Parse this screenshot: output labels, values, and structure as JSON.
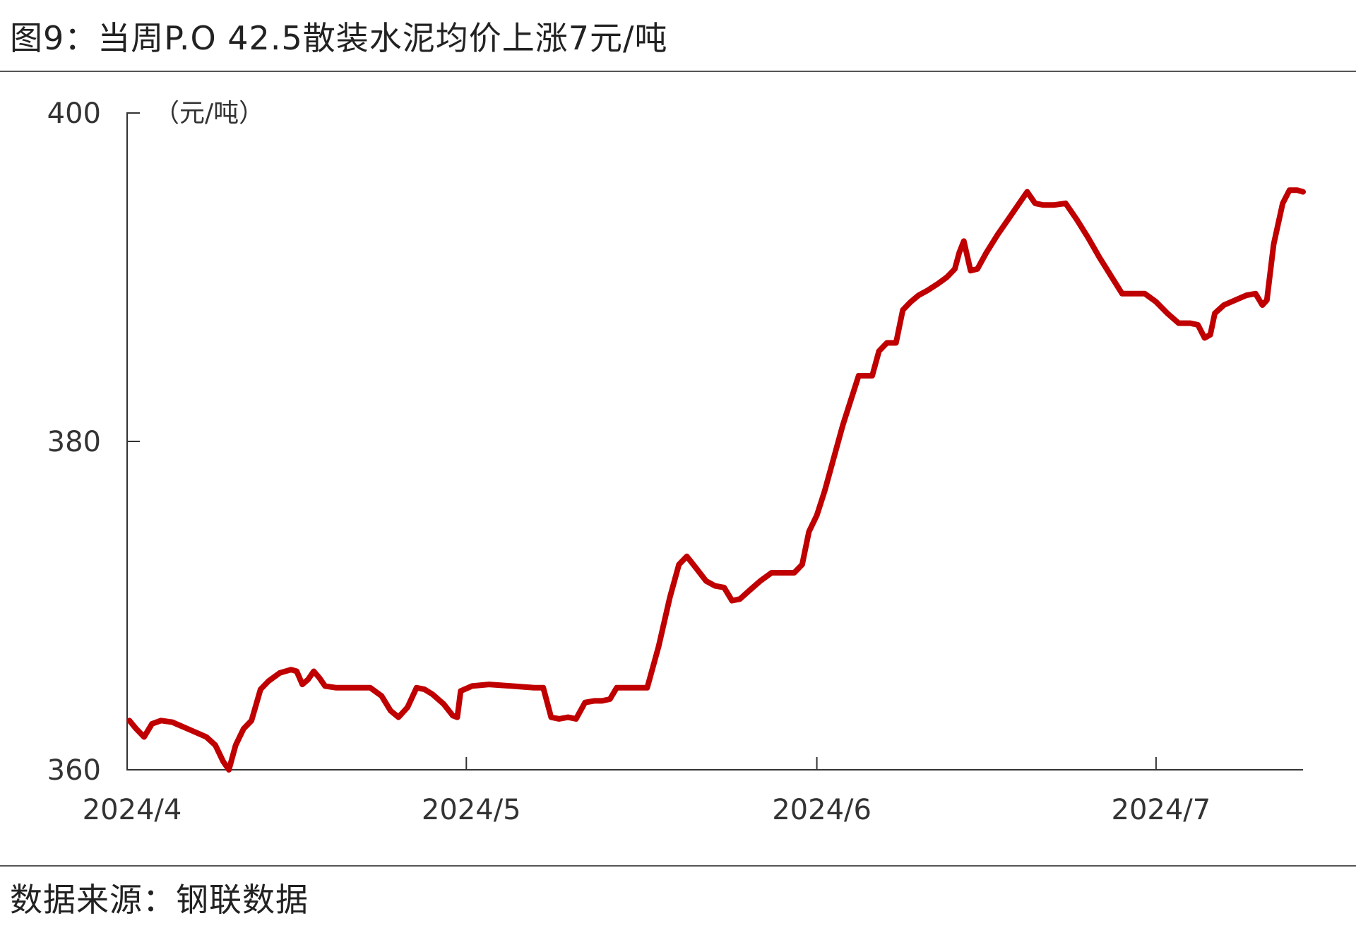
{
  "title": "图9：当周P.O 42.5散装水泥均价上涨7元/吨",
  "source": "数据来源：钢联数据",
  "chart_data": {
    "type": "line",
    "unit_label": "（元/吨）",
    "ylim": [
      360,
      400
    ],
    "yticks": [
      360,
      380,
      400
    ],
    "xticks": [
      {
        "label": "2024/4",
        "day": 0
      },
      {
        "label": "2024/5",
        "day": 30
      },
      {
        "label": "2024/6",
        "day": 61
      },
      {
        "label": "2024/7",
        "day": 91
      }
    ],
    "x_start": "2024/4/1",
    "x_end": "2024/7/13",
    "color": "#c00000",
    "grid": false,
    "series": [
      {
        "points": [
          [
            0.2,
            363.0
          ],
          [
            0.8,
            362.5
          ],
          [
            1.5,
            362.0
          ],
          [
            2.2,
            362.8
          ],
          [
            3.0,
            363.0
          ],
          [
            4.0,
            362.9
          ],
          [
            5.0,
            362.6
          ],
          [
            6.0,
            362.3
          ],
          [
            7.0,
            362.0
          ],
          [
            7.8,
            361.5
          ],
          [
            8.5,
            360.5
          ],
          [
            9.0,
            360.0
          ],
          [
            9.6,
            361.5
          ],
          [
            10.3,
            362.5
          ],
          [
            11.0,
            363.0
          ],
          [
            11.8,
            364.9
          ],
          [
            12.5,
            365.4
          ],
          [
            13.5,
            365.9
          ],
          [
            14.5,
            366.1
          ],
          [
            15.0,
            366.0
          ],
          [
            15.5,
            365.2
          ],
          [
            16.0,
            365.5
          ],
          [
            16.5,
            366.0
          ],
          [
            17.0,
            365.6
          ],
          [
            17.5,
            365.1
          ],
          [
            18.5,
            365.0
          ],
          [
            20.0,
            365.0
          ],
          [
            21.5,
            365.0
          ],
          [
            22.5,
            364.5
          ],
          [
            23.3,
            363.6
          ],
          [
            24.0,
            363.2
          ],
          [
            24.8,
            363.8
          ],
          [
            25.6,
            365.0
          ],
          [
            26.3,
            364.9
          ],
          [
            27.0,
            364.6
          ],
          [
            28.0,
            364.0
          ],
          [
            28.8,
            363.3
          ],
          [
            29.2,
            363.2
          ],
          [
            29.5,
            364.8
          ],
          [
            30.5,
            365.1
          ],
          [
            32.0,
            365.2
          ],
          [
            34.0,
            365.1
          ],
          [
            36.0,
            365.0
          ],
          [
            36.8,
            365.0
          ],
          [
            37.5,
            363.2
          ],
          [
            38.2,
            363.1
          ],
          [
            39.0,
            363.2
          ],
          [
            39.7,
            363.1
          ],
          [
            40.5,
            364.1
          ],
          [
            41.3,
            364.2
          ],
          [
            42.0,
            364.2
          ],
          [
            42.7,
            364.3
          ],
          [
            43.3,
            365.0
          ],
          [
            44.0,
            365.0
          ],
          [
            45.0,
            365.0
          ],
          [
            46.0,
            365.0
          ],
          [
            47.0,
            367.5
          ],
          [
            48.0,
            370.5
          ],
          [
            48.8,
            372.5
          ],
          [
            49.5,
            373.0
          ],
          [
            50.3,
            372.3
          ],
          [
            51.2,
            371.5
          ],
          [
            52.0,
            371.2
          ],
          [
            52.8,
            371.1
          ],
          [
            53.5,
            370.3
          ],
          [
            54.2,
            370.4
          ],
          [
            55.0,
            370.9
          ],
          [
            56.0,
            371.5
          ],
          [
            57.0,
            372.0
          ],
          [
            58.0,
            372.0
          ],
          [
            59.0,
            372.0
          ],
          [
            59.7,
            372.5
          ],
          [
            60.3,
            374.5
          ],
          [
            61.0,
            375.5
          ],
          [
            61.7,
            377.0
          ],
          [
            62.5,
            379.0
          ],
          [
            63.3,
            381.0
          ],
          [
            64.0,
            382.5
          ],
          [
            64.7,
            384.0
          ],
          [
            65.3,
            384.0
          ],
          [
            65.9,
            384.0
          ],
          [
            66.5,
            385.5
          ],
          [
            67.2,
            386.0
          ],
          [
            68.0,
            386.0
          ],
          [
            68.6,
            388.0
          ],
          [
            69.3,
            388.5
          ],
          [
            70.0,
            388.9
          ],
          [
            70.8,
            389.2
          ],
          [
            71.7,
            389.6
          ],
          [
            72.5,
            390.0
          ],
          [
            73.2,
            390.5
          ],
          [
            73.6,
            391.5
          ],
          [
            74.0,
            392.2
          ],
          [
            74.6,
            390.4
          ],
          [
            75.2,
            390.5
          ],
          [
            76.0,
            391.5
          ],
          [
            77.0,
            392.6
          ],
          [
            78.0,
            393.6
          ],
          [
            79.0,
            394.6
          ],
          [
            79.6,
            395.2
          ],
          [
            80.3,
            394.5
          ],
          [
            81.0,
            394.4
          ],
          [
            82.0,
            394.4
          ],
          [
            83.0,
            394.5
          ],
          [
            84.0,
            393.5
          ],
          [
            85.0,
            392.4
          ],
          [
            86.0,
            391.2
          ],
          [
            87.0,
            390.1
          ],
          [
            88.0,
            389.0
          ],
          [
            89.0,
            389.0
          ],
          [
            90.0,
            389.0
          ],
          [
            91.0,
            388.5
          ],
          [
            92.0,
            387.8
          ],
          [
            93.0,
            387.2
          ],
          [
            94.0,
            387.2
          ],
          [
            94.7,
            387.1
          ],
          [
            95.3,
            386.3
          ],
          [
            95.8,
            386.5
          ],
          [
            96.2,
            387.8
          ],
          [
            97.0,
            388.3
          ],
          [
            98.0,
            388.6
          ],
          [
            99.0,
            388.9
          ],
          [
            99.8,
            389.0
          ],
          [
            100.4,
            388.3
          ],
          [
            100.8,
            388.6
          ],
          [
            101.4,
            392.0
          ],
          [
            102.2,
            394.5
          ],
          [
            102.8,
            395.3
          ],
          [
            103.5,
            395.3
          ],
          [
            104.0,
            395.2
          ]
        ]
      }
    ]
  }
}
